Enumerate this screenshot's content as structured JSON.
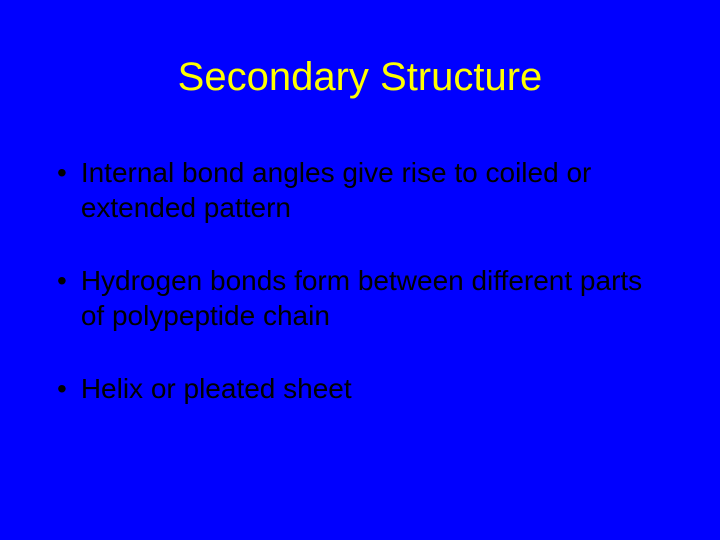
{
  "slide": {
    "background_color": "#0000ff",
    "title": {
      "text": "Secondary Structure",
      "color": "#ffff00",
      "fontsize": 40,
      "font_family": "Arial",
      "align": "center"
    },
    "bullets": [
      {
        "text": "Internal bond angles give rise to coiled or extended pattern"
      },
      {
        "text": "Hydrogen bonds form between different parts of polypeptide chain"
      },
      {
        "text": "Helix or pleated sheet"
      }
    ],
    "bullet_style": {
      "marker": "•",
      "color": "#000000",
      "fontsize": 28,
      "font_family": "Arial",
      "line_height": 1.25,
      "spacing_after": 38
    }
  }
}
